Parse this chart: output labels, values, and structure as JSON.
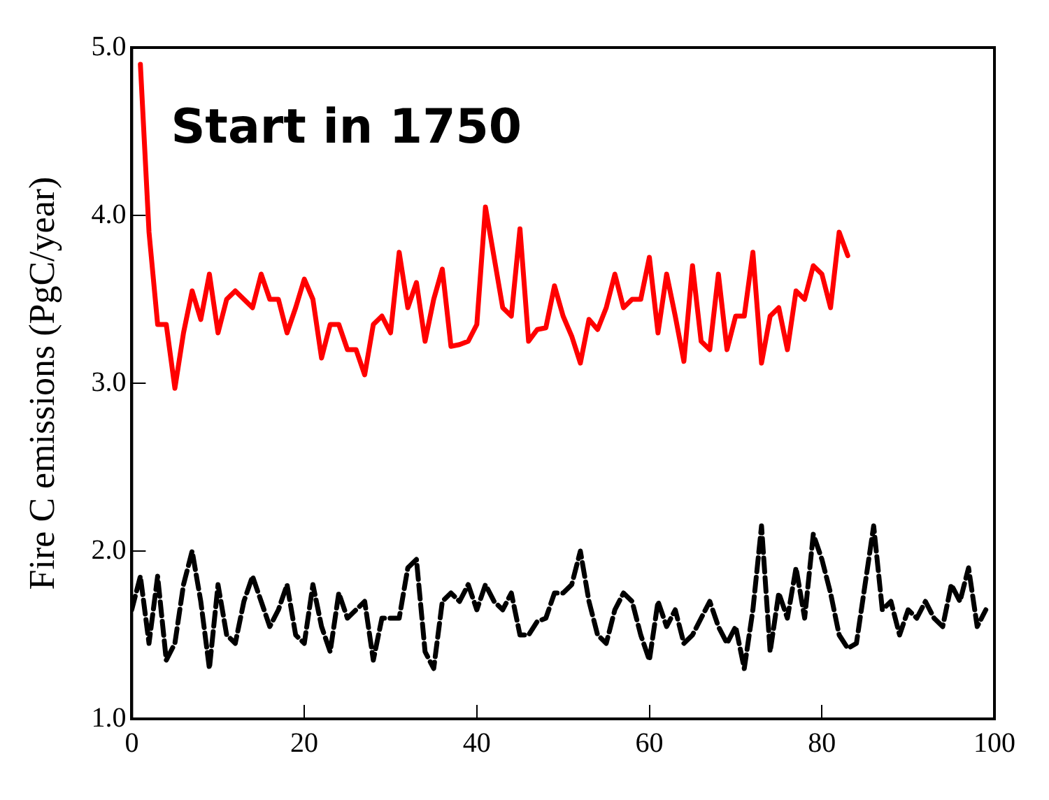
{
  "chart_data": {
    "type": "line",
    "ylabel": "Fire C emissions (PgC/year)",
    "annotations": [
      "Start in 1750"
    ],
    "xlim": [
      0,
      100
    ],
    "xticks": [
      0,
      20,
      40,
      60,
      80,
      100
    ],
    "ylim": [
      1,
      5
    ],
    "yticks": [
      {
        "value": 1,
        "label": "1.0"
      },
      {
        "value": 2,
        "label": "2.0"
      },
      {
        "value": 3,
        "label": "3.0"
      },
      {
        "value": 4,
        "label": "4.0"
      },
      {
        "value": 5,
        "label": "5.0"
      }
    ],
    "grid": false,
    "legend": false,
    "marker": "none",
    "series": [
      {
        "color": "#ff0000",
        "line_style": "solid",
        "x": [
          1,
          2,
          3,
          4,
          5,
          6,
          7,
          8,
          9,
          10,
          11,
          12,
          13,
          14,
          15,
          16,
          17,
          18,
          19,
          20,
          21,
          22,
          23,
          24,
          25,
          26,
          27,
          28,
          29,
          30,
          31,
          32,
          33,
          34,
          35,
          36,
          37,
          38,
          39,
          40,
          41,
          42,
          43,
          44,
          45,
          46,
          47,
          48,
          49,
          50,
          51,
          52,
          53,
          54,
          55,
          56,
          57,
          58,
          59,
          60,
          61,
          62,
          63,
          64,
          65,
          66,
          67,
          68,
          69,
          70,
          71,
          72,
          73,
          74,
          75,
          76,
          77,
          78,
          79,
          80,
          81,
          82,
          83
        ],
        "values": [
          4.9,
          3.9,
          3.35,
          3.35,
          2.97,
          3.3,
          3.55,
          3.38,
          3.65,
          3.3,
          3.5,
          3.55,
          3.5,
          3.45,
          3.65,
          3.5,
          3.5,
          3.3,
          3.45,
          3.62,
          3.5,
          3.15,
          3.35,
          3.35,
          3.2,
          3.2,
          3.05,
          3.35,
          3.4,
          3.3,
          3.78,
          3.45,
          3.6,
          3.25,
          3.5,
          3.68,
          3.22,
          3.23,
          3.25,
          3.35,
          4.05,
          3.75,
          3.45,
          3.4,
          3.92,
          3.25,
          3.32,
          3.33,
          3.58,
          3.4,
          3.28,
          3.12,
          3.38,
          3.32,
          3.45,
          3.65,
          3.45,
          3.5,
          3.5,
          3.75,
          3.3,
          3.65,
          3.4,
          3.13,
          3.7,
          3.25,
          3.2,
          3.65,
          3.2,
          3.4,
          3.4,
          3.78,
          3.12,
          3.4,
          3.45,
          3.2,
          3.55,
          3.5,
          3.7,
          3.65,
          3.45,
          3.9,
          3.76
        ]
      },
      {
        "color": "#000000",
        "line_style": "dashed",
        "x": [
          0,
          1,
          2,
          3,
          4,
          5,
          6,
          7,
          8,
          9,
          10,
          11,
          12,
          13,
          14,
          15,
          16,
          17,
          18,
          19,
          20,
          21,
          22,
          23,
          24,
          25,
          26,
          27,
          28,
          29,
          30,
          31,
          32,
          33,
          34,
          35,
          36,
          37,
          38,
          39,
          40,
          41,
          42,
          43,
          44,
          45,
          46,
          47,
          48,
          49,
          50,
          51,
          52,
          53,
          54,
          55,
          56,
          57,
          58,
          59,
          60,
          61,
          62,
          63,
          64,
          65,
          66,
          67,
          68,
          69,
          70,
          71,
          72,
          73,
          74,
          75,
          76,
          77,
          78,
          79,
          80,
          81,
          82,
          83,
          84,
          85,
          86,
          87,
          88,
          89,
          90,
          91,
          92,
          93,
          94,
          95,
          96,
          97,
          98,
          99
        ],
        "values": [
          1.65,
          1.85,
          1.45,
          1.85,
          1.35,
          1.45,
          1.8,
          2.0,
          1.7,
          1.3,
          1.8,
          1.5,
          1.45,
          1.7,
          1.85,
          1.7,
          1.55,
          1.65,
          1.8,
          1.5,
          1.45,
          1.8,
          1.55,
          1.4,
          1.75,
          1.6,
          1.65,
          1.7,
          1.35,
          1.6,
          1.6,
          1.6,
          1.9,
          1.95,
          1.4,
          1.3,
          1.7,
          1.75,
          1.7,
          1.8,
          1.65,
          1.8,
          1.7,
          1.65,
          1.75,
          1.5,
          1.5,
          1.58,
          1.6,
          1.75,
          1.75,
          1.8,
          2.0,
          1.7,
          1.5,
          1.45,
          1.65,
          1.75,
          1.7,
          1.5,
          1.35,
          1.7,
          1.55,
          1.65,
          1.45,
          1.5,
          1.6,
          1.7,
          1.55,
          1.45,
          1.55,
          1.3,
          1.65,
          2.15,
          1.4,
          1.75,
          1.6,
          1.9,
          1.6,
          2.1,
          1.95,
          1.75,
          1.5,
          1.42,
          1.45,
          1.8,
          2.15,
          1.65,
          1.7,
          1.5,
          1.65,
          1.6,
          1.7,
          1.6,
          1.55,
          1.8,
          1.7,
          1.9,
          1.55,
          1.65
        ]
      }
    ]
  }
}
